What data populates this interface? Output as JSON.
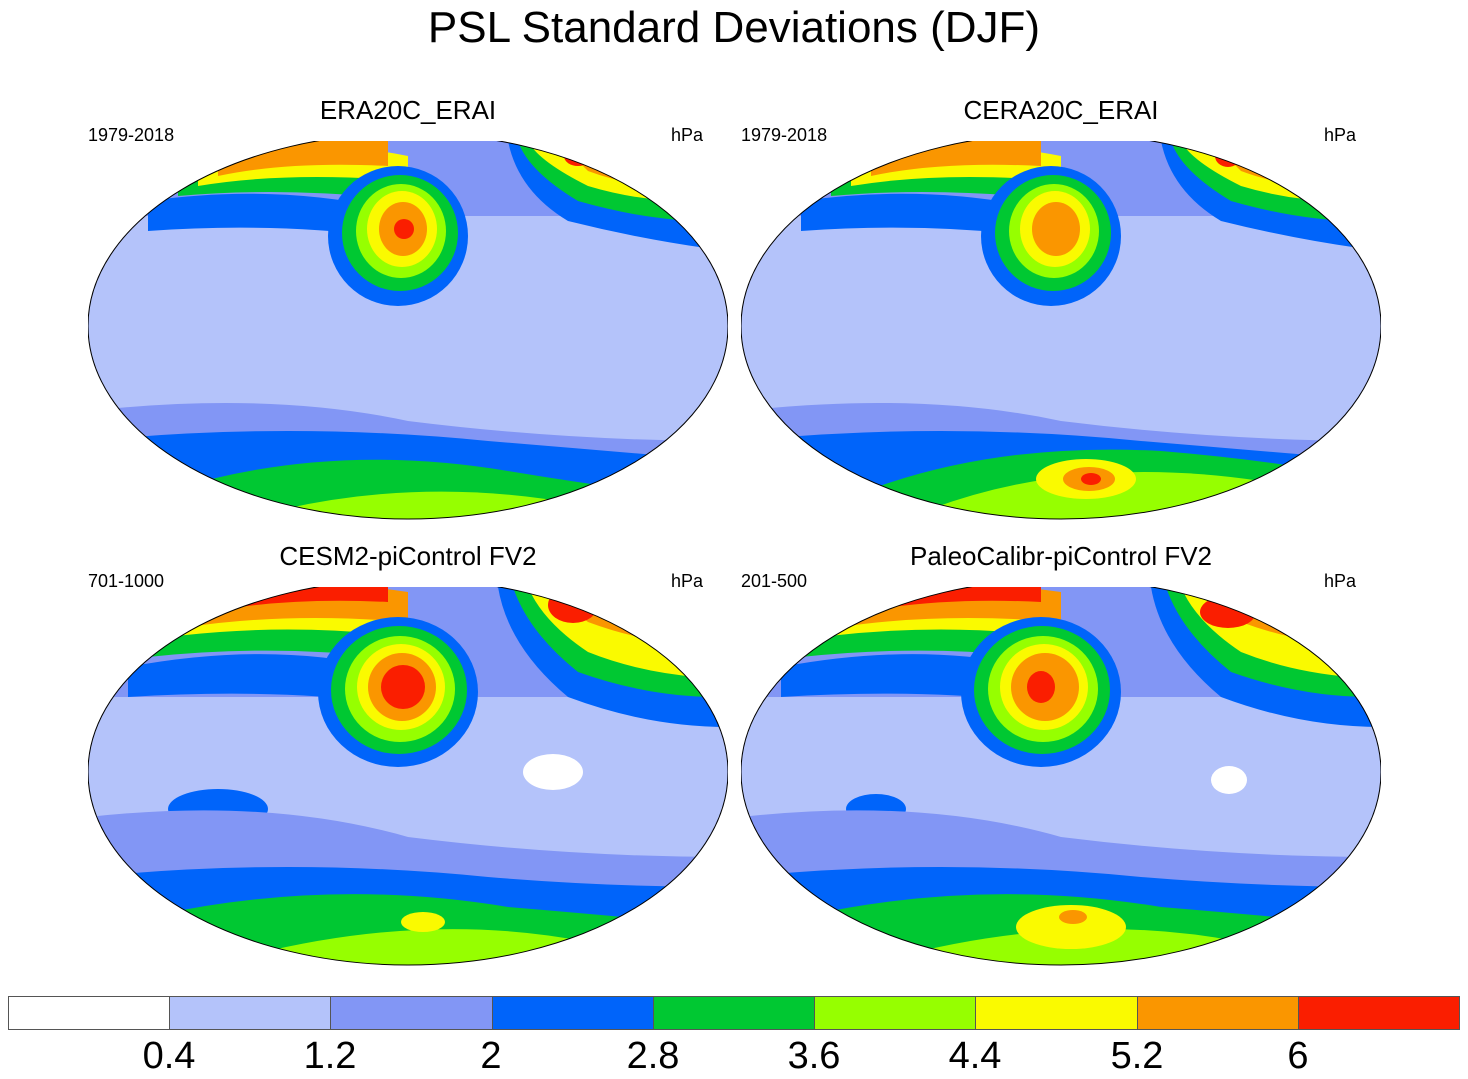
{
  "title": "PSL Standard Deviations (DJF)",
  "panels": [
    {
      "title": "ERA20C_ERAI",
      "period": "1979-2018",
      "units": "hPa"
    },
    {
      "title": "CERA20C_ERAI",
      "period": "1979-2018",
      "units": "hPa"
    },
    {
      "title": "CESM2-piControl FV2",
      "period": "701-1000",
      "units": "hPa"
    },
    {
      "title": "PaleoCalibr-piControl FV2",
      "period": "201-500",
      "units": "hPa"
    }
  ],
  "colorbar": {
    "labels": [
      "0.4",
      "1.2",
      "2",
      "2.8",
      "3.6",
      "4.4",
      "5.2",
      "6"
    ],
    "colors": [
      "#ffffff",
      "#b4c3fa",
      "#8296f5",
      "#0064fa",
      "#00c832",
      "#96ff00",
      "#fafa00",
      "#fa9600",
      "#fa1e00"
    ]
  }
}
